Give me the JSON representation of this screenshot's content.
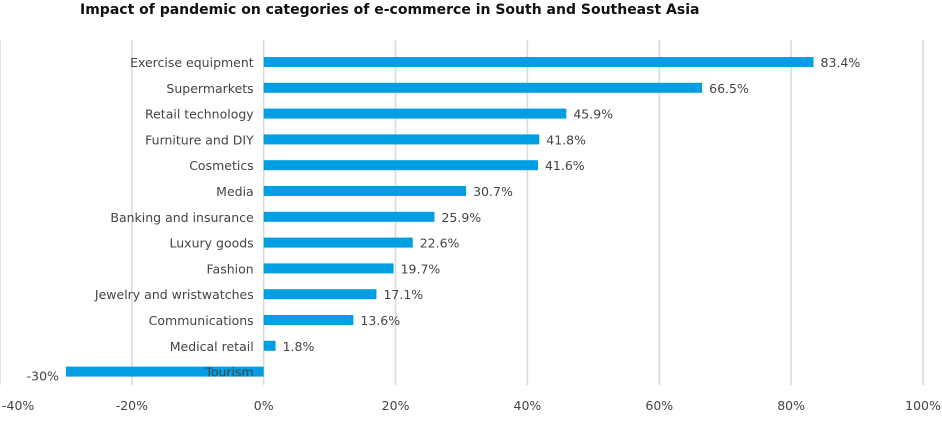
{
  "chart_data": {
    "type": "bar",
    "orientation": "horizontal",
    "title": "Impact of pandemic on categories of e-commerce in South and Southeast Asia",
    "categories": [
      "Exercise equipment",
      "Supermarkets",
      "Retail technology",
      "Furniture and DIY",
      "Cosmetics",
      "Media",
      "Banking and insurance",
      "Luxury goods",
      "Fashion",
      "Jewelry and wristwatches",
      "Communications",
      "Medical retail",
      "Tourism"
    ],
    "values": [
      83.4,
      66.5,
      45.9,
      41.8,
      41.6,
      30.7,
      25.9,
      22.6,
      19.7,
      17.1,
      13.6,
      1.8,
      -30
    ],
    "data_labels": [
      "83.4%",
      "66.5%",
      "45.9%",
      "41.8%",
      "41.6%",
      "30.7%",
      "25.9%",
      "22.6%",
      "19.7%",
      "17.1%",
      "13.6%",
      "1.8%",
      "-30%"
    ],
    "xlim": [
      -40,
      100
    ],
    "xticks": [
      -40,
      -20,
      0,
      20,
      40,
      60,
      80,
      100
    ],
    "xtick_labels": [
      "-40%",
      "-20%",
      "0%",
      "20%",
      "40%",
      "60%",
      "80%",
      "100%"
    ],
    "grid": true,
    "bar_color": "#009fe3",
    "xlabel": "",
    "ylabel": ""
  }
}
